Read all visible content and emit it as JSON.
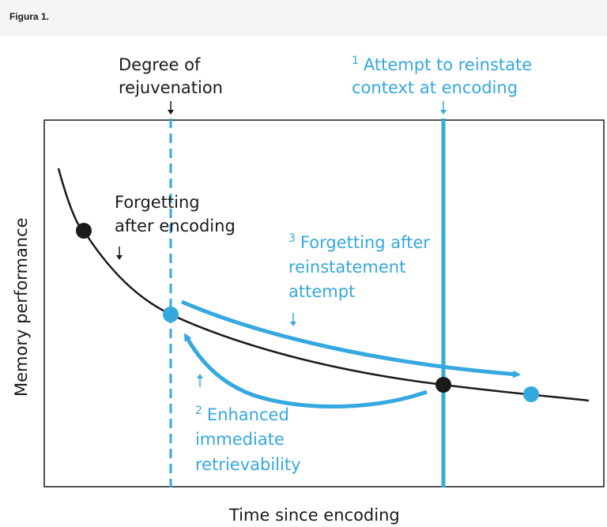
{
  "figure_label": "Figura 1.",
  "colors": {
    "accent": "#35a8df",
    "ink": "#1a1a1a"
  },
  "labels": {
    "degree_line1": "Degree of",
    "degree_line2": "rejuvenation",
    "attempt_num": "1",
    "attempt_line1": "Attempt to reinstate",
    "attempt_line2": "context at encoding",
    "forgetting_line1": "Forgetting",
    "forgetting_line2": "after encoding",
    "forgetting_after_num": "3",
    "forgetting_after_line1": "Forgetting after",
    "forgetting_after_line2": "reinstatement",
    "forgetting_after_line3": "attempt",
    "enhanced_num": "2",
    "enhanced_line1": "Enhanced",
    "enhanced_line2": "immediate",
    "enhanced_line3": "retrievability",
    "y_axis": "Memory performance",
    "x_axis": "Time since encoding"
  }
}
